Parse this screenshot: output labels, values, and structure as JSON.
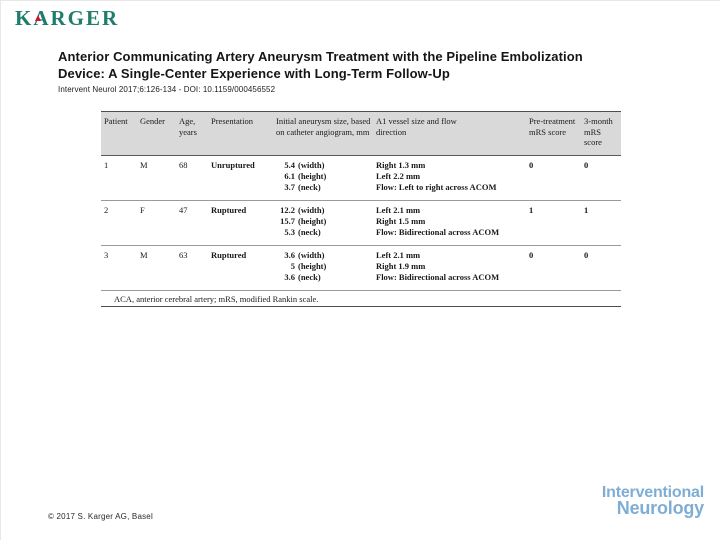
{
  "page": {
    "logo_text": "KARGER",
    "copyright": "© 2017 S. Karger AG, Basel",
    "journal_logo": {
      "line1": "Interventional",
      "line2": "Neurology"
    }
  },
  "article": {
    "title_line1": "Anterior Communicating Artery Aneurysm Treatment with the Pipeline Embolization",
    "title_line2": "Device: A Single-Center Experience with Long-Term Follow-Up",
    "citation": "Intervent Neurol 2017;6:126-134 - DOI: 10.1159/000456552"
  },
  "table": {
    "headers": [
      "Patient",
      "Gender",
      "Age, years",
      "Presentation",
      "Initial aneurysm size, based on catheter angiogram, mm",
      "A1 vessel size and flow direction",
      "Pre-treatment mRS score",
      "3-month mRS score"
    ],
    "rows": [
      {
        "patient": "1",
        "gender": "M",
        "age": "68",
        "presentation": "Unruptured",
        "size": [
          {
            "num": "5.4",
            "dim": "(width)"
          },
          {
            "num": "6.1",
            "dim": "(height)"
          },
          {
            "num": "3.7",
            "dim": "(neck)"
          }
        ],
        "a1": [
          "Right 1.3 mm",
          "Left 2.2 mm",
          "Flow: Left to right across ACOM"
        ],
        "pre_treatment_mrs": "0",
        "three_month_mrs": "0"
      },
      {
        "patient": "2",
        "gender": "F",
        "age": "47",
        "presentation": "Ruptured",
        "size": [
          {
            "num": "12.2",
            "dim": "(width)"
          },
          {
            "num": "15.7",
            "dim": "(height)"
          },
          {
            "num": "5.3",
            "dim": "(neck)"
          }
        ],
        "a1": [
          "Left 2.1 mm",
          "Right 1.5 mm",
          "Flow: Bidirectional across ACOM"
        ],
        "pre_treatment_mrs": "1",
        "three_month_mrs": "1"
      },
      {
        "patient": "3",
        "gender": "M",
        "age": "63",
        "presentation": "Ruptured",
        "size": [
          {
            "num": "3.6",
            "dim": "(width)"
          },
          {
            "num": "5",
            "dim": "(height)"
          },
          {
            "num": "3.6",
            "dim": "(neck)"
          }
        ],
        "a1": [
          "Left 2.1 mm",
          "Right 1.9 mm",
          "Flow: Bidirectional across ACOM"
        ],
        "pre_treatment_mrs": "0",
        "three_month_mrs": "0"
      }
    ],
    "footnote": "ACA, anterior cerebral artery; mRS, modified Rankin scale."
  },
  "colors": {
    "brand_teal": "#1e7d6d",
    "brand_red": "#cf1430",
    "journal_blue": "#7faed5",
    "table_header_bg": "#d9d9d9"
  }
}
